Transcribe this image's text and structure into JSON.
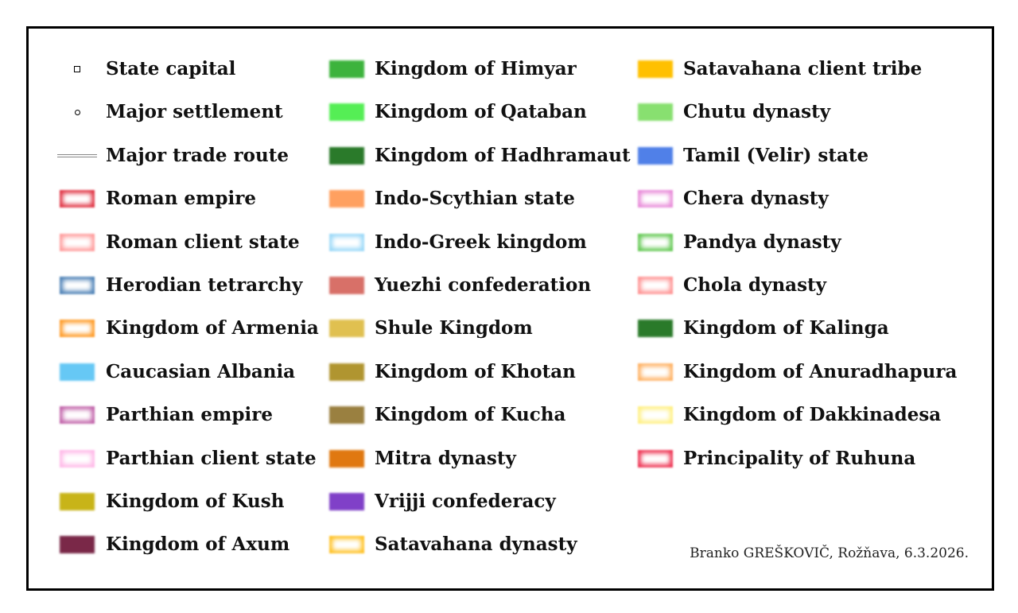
{
  "legend": {
    "columns": [
      [
        {
          "label": "State capital",
          "style": "square",
          "color": "#000000"
        },
        {
          "label": "Major settlement",
          "style": "circle",
          "color": "#000000"
        },
        {
          "label": "Major trade route",
          "style": "line",
          "color": "#888888"
        },
        {
          "label": "Roman empire",
          "style": "outline",
          "color": "#e03040"
        },
        {
          "label": "Roman client state",
          "style": "outline",
          "color": "#ff9a9a"
        },
        {
          "label": "Herodian tetrarchy",
          "style": "outline",
          "color": "#4a7fb5"
        },
        {
          "label": "Kingdom of Armenia",
          "style": "outline",
          "color": "#ff9922"
        },
        {
          "label": "Caucasian Albania",
          "style": "fill",
          "color": "#66c8f5"
        },
        {
          "label": "Parthian empire",
          "style": "outline",
          "color": "#c060a8"
        },
        {
          "label": "Parthian client state",
          "style": "outline",
          "color": "#ffb8e8"
        },
        {
          "label": "Kingdom of Kush",
          "style": "fill",
          "color": "#c8b418"
        },
        {
          "label": "Kingdom of Axum",
          "style": "fill",
          "color": "#7a2848"
        }
      ],
      [
        {
          "label": "Kingdom of Himyar",
          "style": "fill",
          "color": "#3cb33c"
        },
        {
          "label": "Kingdom of Qataban",
          "style": "fill",
          "color": "#55ee55"
        },
        {
          "label": "Kingdom of Hadhramaut",
          "style": "fill",
          "color": "#2a7a2a"
        },
        {
          "label": "Indo-Scythian state",
          "style": "fill",
          "color": "#ffa060"
        },
        {
          "label": "Indo-Greek kingdom",
          "style": "outline",
          "color": "#99d8f8"
        },
        {
          "label": "Yuezhi confederation",
          "style": "fill",
          "color": "#d87068"
        },
        {
          "label": "Shule Kingdom",
          "style": "fill",
          "color": "#e0c050"
        },
        {
          "label": "Kingdom of Khotan",
          "style": "fill",
          "color": "#b09530"
        },
        {
          "label": "Kingdom of Kucha",
          "style": "fill",
          "color": "#9a8040"
        },
        {
          "label": "Mitra dynasty",
          "style": "fill",
          "color": "#e07810"
        },
        {
          "label": "Vrijji confederacy",
          "style": "fill",
          "color": "#8040c8"
        },
        {
          "label": "Satavahana dynasty",
          "style": "outline",
          "color": "#ffc020"
        }
      ],
      [
        {
          "label": "Satavahana client tribe",
          "style": "fill",
          "color": "#ffc000"
        },
        {
          "label": "Chutu dynasty",
          "style": "fill",
          "color": "#88e070"
        },
        {
          "label": "Tamil (Velir) state",
          "style": "fill",
          "color": "#5080e8"
        },
        {
          "label": "Chera dynasty",
          "style": "outline",
          "color": "#e888d8"
        },
        {
          "label": "Pandya dynasty",
          "style": "outline",
          "color": "#60c850"
        },
        {
          "label": "Chola dynasty",
          "style": "outline",
          "color": "#ff9090"
        },
        {
          "label": "Kingdom of Kalinga",
          "style": "fill",
          "color": "#2a7a2a"
        },
        {
          "label": "Kingdom of Anuradhapura",
          "style": "outline",
          "color": "#ffb060"
        },
        {
          "label": "Kingdom of Dakkinadesa",
          "style": "outline",
          "color": "#fff080"
        },
        {
          "label": "Principality of Ruhuna",
          "style": "outline",
          "color": "#ee3050"
        }
      ]
    ]
  },
  "credit": "Branko GREŠKOVIČ, Rožňava, 6.3.2026."
}
